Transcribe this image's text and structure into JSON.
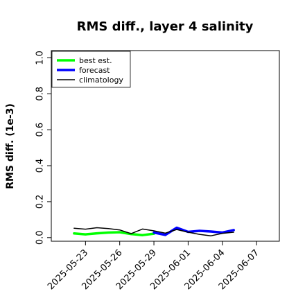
{
  "chart_data": {
    "type": "line",
    "title": "RMS diff., layer 4 salinity",
    "ylabel": "RMS diff. (1e-3)",
    "xlabel": "",
    "ylim": [
      -0.02,
      1.04
    ],
    "yticks": [
      0.0,
      0.2,
      0.4,
      0.6,
      0.8,
      1.0
    ],
    "ytick_labels": [
      "0.0",
      "0.2",
      "0.4",
      "0.6",
      "0.8",
      "1.0"
    ],
    "xlim": [
      "2025-05-20",
      "2025-06-09"
    ],
    "xticks": [
      "2025-05-23",
      "2025-05-26",
      "2025-05-29",
      "2025-06-01",
      "2025-06-04",
      "2025-06-07"
    ],
    "highlighted_xtick": "2025-05-29",
    "highlight_color": "#228b22",
    "grid": false,
    "legend_position": "top-left",
    "series": [
      {
        "name": "best est.",
        "color": "#00ff00",
        "x": [
          "2025-05-22",
          "2025-05-23",
          "2025-05-24",
          "2025-05-25",
          "2025-05-26",
          "2025-05-27",
          "2025-05-28",
          "2025-05-29"
        ],
        "y": [
          0.023,
          0.018,
          0.024,
          0.028,
          0.03,
          0.02,
          0.014,
          0.022
        ]
      },
      {
        "name": "forecast",
        "color": "#0000ff",
        "x": [
          "2025-05-29",
          "2025-05-30",
          "2025-05-31",
          "2025-06-01",
          "2025-06-02",
          "2025-06-03",
          "2025-06-04",
          "2025-06-05"
        ],
        "y": [
          0.028,
          0.015,
          0.055,
          0.032,
          0.038,
          0.034,
          0.028,
          0.042
        ]
      },
      {
        "name": "climatology",
        "color": "#000000",
        "x": [
          "2025-05-22",
          "2025-05-23",
          "2025-05-24",
          "2025-05-25",
          "2025-05-26",
          "2025-05-27",
          "2025-05-28",
          "2025-05-29",
          "2025-05-30",
          "2025-05-31",
          "2025-06-01",
          "2025-06-02",
          "2025-06-03",
          "2025-06-04",
          "2025-06-05"
        ],
        "y": [
          0.052,
          0.047,
          0.055,
          0.05,
          0.043,
          0.022,
          0.048,
          0.038,
          0.025,
          0.045,
          0.03,
          0.018,
          0.01,
          0.024,
          0.03
        ]
      }
    ]
  }
}
